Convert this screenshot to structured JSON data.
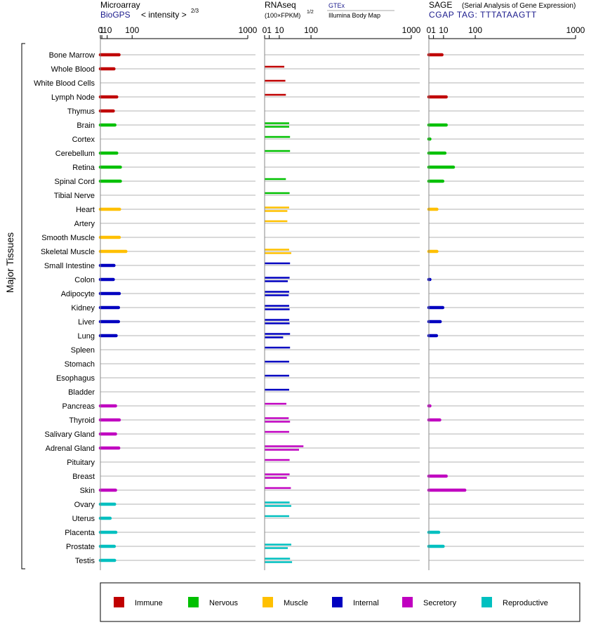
{
  "chart_data": {
    "type": "bar",
    "y_axis_title": "Major Tissues",
    "panels": [
      {
        "id": "microarray",
        "title": "Microarray",
        "source": "BioGPS",
        "scale_label": "< intensity >",
        "scale_exponent": "2/3",
        "ticks": [
          "0",
          "1",
          "10",
          "100",
          "1000"
        ],
        "domain": [
          0,
          1000
        ]
      },
      {
        "id": "rnaseq",
        "title": "RNAseq",
        "scale_label": "(100×FPKM)",
        "scale_exponent": "1/2",
        "source_top": "GTEx",
        "source_bottom": "Illumina Body Map",
        "ticks": [
          "0",
          "1",
          "10",
          "100",
          "1000"
        ],
        "domain": [
          0,
          1000
        ]
      },
      {
        "id": "sage",
        "title": "SAGE",
        "subtitle": "(Serial Analysis of Gene Expression)",
        "tag": "CGAP TAG: TTTATAAGTT",
        "ticks": [
          "0",
          "1",
          "10",
          "100",
          "1000"
        ],
        "domain": [
          0,
          1000
        ]
      }
    ],
    "categories": [
      "Bone Marrow",
      "Whole Blood",
      "White Blood Cells",
      "Lymph Node",
      "Thymus",
      "Brain",
      "Cortex",
      "Cerebellum",
      "Retina",
      "Spinal Cord",
      "Tibial Nerve",
      "Heart",
      "Artery",
      "Smooth Muscle",
      "Skeletal Muscle",
      "Small Intestine",
      "Colon",
      "Adipocyte",
      "Kidney",
      "Liver",
      "Lung",
      "Spleen",
      "Stomach",
      "Esophagus",
      "Bladder",
      "Pancreas",
      "Thyroid",
      "Salivary Gland",
      "Adrenal Gland",
      "Pituitary",
      "Breast",
      "Skin",
      "Ovary",
      "Uterus",
      "Placenta",
      "Prostate",
      "Testis"
    ],
    "groups": [
      "immune",
      "immune",
      "immune",
      "immune",
      "immune",
      "nervous",
      "nervous",
      "nervous",
      "nervous",
      "nervous",
      "nervous",
      "muscle",
      "muscle",
      "muscle",
      "muscle",
      "internal",
      "internal",
      "internal",
      "internal",
      "internal",
      "internal",
      "internal",
      "internal",
      "internal",
      "internal",
      "secretory",
      "secretory",
      "secretory",
      "secretory",
      "secretory",
      "secretory",
      "secretory",
      "reproductive",
      "reproductive",
      "reproductive",
      "reproductive",
      "reproductive"
    ],
    "microarray": [
      45,
      28,
      null,
      37,
      26,
      31,
      null,
      37,
      50,
      50,
      null,
      47,
      null,
      46,
      72,
      28,
      26,
      46,
      43,
      43,
      35,
      null,
      null,
      null,
      null,
      33,
      46,
      33,
      44,
      null,
      null,
      33,
      30,
      17,
      34,
      29,
      30
    ],
    "rnaseq_gtex": [
      null,
      18,
      20,
      21,
      null,
      28,
      30,
      30,
      null,
      21,
      29,
      28,
      24,
      null,
      28,
      30,
      29,
      28,
      28,
      28,
      30,
      30,
      28,
      28,
      28,
      22,
      27,
      28,
      70,
      29,
      29,
      32,
      29,
      28,
      null,
      33,
      30
    ],
    "rnaseq_ibm": [
      null,
      null,
      null,
      null,
      null,
      28,
      null,
      null,
      null,
      null,
      null,
      24,
      null,
      null,
      33,
      null,
      25,
      27,
      29,
      29,
      16,
      null,
      null,
      null,
      null,
      null,
      30,
      null,
      55,
      null,
      23,
      null,
      33,
      null,
      null,
      25,
      35
    ],
    "sage": [
      8,
      null,
      null,
      14,
      null,
      14,
      0.02,
      12,
      28,
      9,
      null,
      3,
      null,
      null,
      3,
      null,
      0.02,
      null,
      9,
      6,
      2.7,
      null,
      null,
      null,
      null,
      0.02,
      5.5,
      null,
      null,
      null,
      14,
      60,
      null,
      null,
      4.5,
      9.5,
      null
    ]
  },
  "legend": {
    "items": [
      {
        "key": "immune",
        "label": "Immune",
        "color": "#c00000"
      },
      {
        "key": "nervous",
        "label": "Nervous",
        "color": "#00c000"
      },
      {
        "key": "muscle",
        "label": "Muscle",
        "color": "#ffc000"
      },
      {
        "key": "internal",
        "label": "Internal",
        "color": "#0000c0"
      },
      {
        "key": "secretory",
        "label": "Secretory",
        "color": "#c000c0"
      },
      {
        "key": "reproductive",
        "label": "Reproductive",
        "color": "#00c0c0"
      }
    ]
  }
}
